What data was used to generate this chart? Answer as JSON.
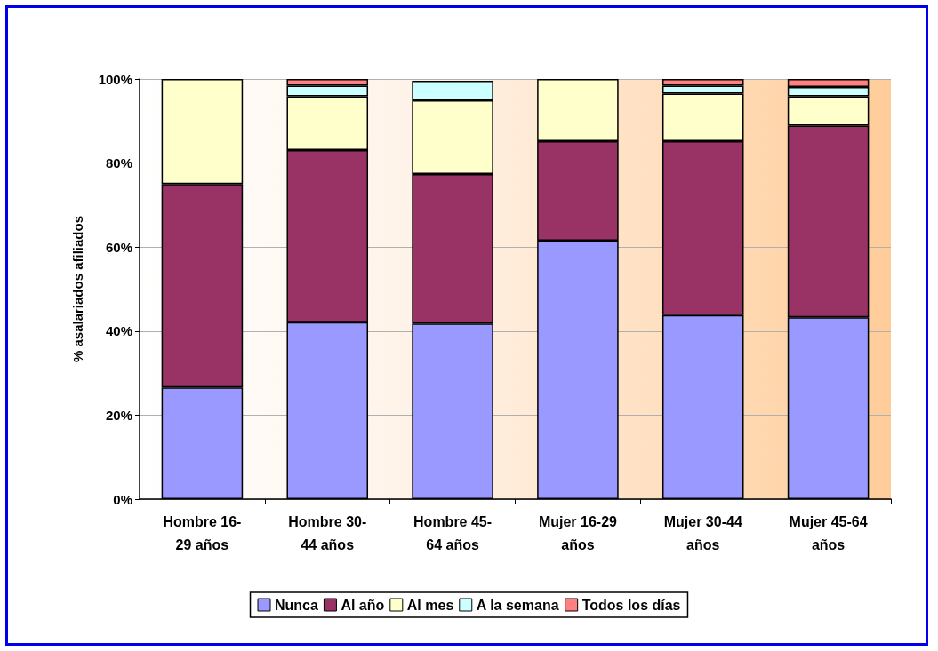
{
  "chart_data": {
    "type": "bar",
    "stacked": true,
    "ylabel": "% asalariados afiliados",
    "categories": [
      "Hombre 16-\n29 años",
      "Hombre 30-\n44 años",
      "Hombre 45-\n64 años",
      "Mujer 16-29\naños",
      "Mujer 30-44\naños",
      "Mujer 45-64\naños"
    ],
    "series": [
      {
        "name": "Nunca",
        "color": "#9999ff",
        "values": [
          26.6,
          42.1,
          41.8,
          61.5,
          43.8,
          43.3
        ]
      },
      {
        "name": "Al año",
        "color": "#993366",
        "values": [
          48.4,
          41.0,
          35.6,
          23.7,
          41.4,
          45.6
        ]
      },
      {
        "name": "Al mes",
        "color": "#ffffcc",
        "values": [
          25.0,
          12.8,
          17.5,
          14.8,
          11.3,
          7.0
        ]
      },
      {
        "name": "A la semana",
        "color": "#ccffff",
        "values": [
          null,
          2.5,
          4.7,
          null,
          1.9,
          2.2
        ]
      },
      {
        "name": "Todos los días",
        "color": "#ff8080",
        "values": [
          null,
          1.6,
          null,
          null,
          1.6,
          1.9
        ]
      }
    ],
    "ylim": [
      0,
      100
    ],
    "yticks": [
      {
        "value": 0,
        "label": "0%"
      },
      {
        "value": 20,
        "label": "20%"
      },
      {
        "value": 40,
        "label": "40%"
      },
      {
        "value": 60,
        "label": "60%"
      },
      {
        "value": 80,
        "label": "80%"
      },
      {
        "value": 100,
        "label": "100%"
      }
    ],
    "grid": "y",
    "legend": "bottom"
  }
}
